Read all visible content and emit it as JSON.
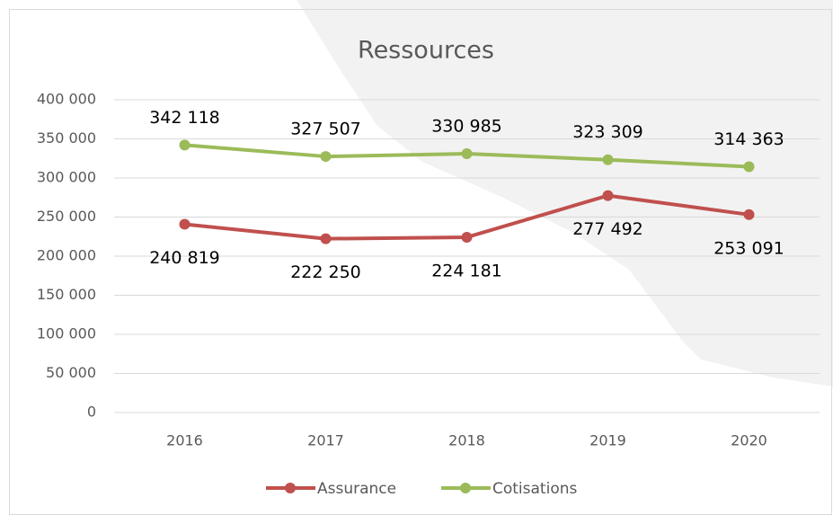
{
  "chart_data": {
    "type": "line",
    "title": "Ressources",
    "categories": [
      "2016",
      "2017",
      "2018",
      "2019",
      "2020"
    ],
    "series": [
      {
        "name": "Assurance",
        "color": "#c0504d",
        "values": [
          240819,
          222250,
          224181,
          277492,
          253091
        ],
        "value_labels": [
          "240 819",
          "222 250",
          "224 181",
          "277 492",
          "253 091"
        ]
      },
      {
        "name": "Cotisations",
        "color": "#9bbb59",
        "values": [
          342118,
          327507,
          330985,
          323309,
          314363
        ],
        "value_labels": [
          "342 118",
          "327 507",
          "330 985",
          "323 309",
          "314 363"
        ]
      }
    ],
    "ylim": [
      0,
      400000
    ],
    "yticks": [
      0,
      {
        "value": 50000,
        "label": "50 000"
      },
      {
        "value": 100000,
        "label": "100 000"
      },
      {
        "value": 150000,
        "label": "150 000"
      },
      {
        "value": 200000,
        "label": "200 000"
      },
      {
        "value": 250000,
        "label": "250 000"
      },
      {
        "value": 300000,
        "label": "300 000"
      },
      {
        "value": 350000,
        "label": "350 000"
      },
      {
        "value": 400000,
        "label": "400 000"
      }
    ],
    "grid": true,
    "legend": "bottom"
  }
}
